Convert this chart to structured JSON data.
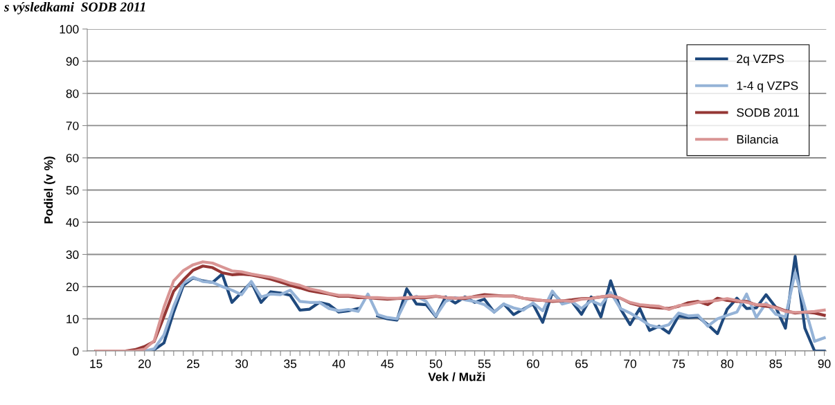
{
  "chart_data": {
    "type": "line",
    "title": "s výsledkami  SODB 2011",
    "xlabel": "Vek / Muži",
    "ylabel": "Podiel (v %)",
    "x": [
      15,
      16,
      17,
      18,
      19,
      20,
      21,
      22,
      23,
      24,
      25,
      26,
      27,
      28,
      29,
      30,
      31,
      32,
      33,
      34,
      35,
      36,
      37,
      38,
      39,
      40,
      41,
      42,
      43,
      44,
      45,
      46,
      47,
      48,
      49,
      50,
      51,
      52,
      53,
      54,
      55,
      56,
      57,
      58,
      59,
      60,
      61,
      62,
      63,
      64,
      65,
      66,
      67,
      68,
      69,
      70,
      71,
      72,
      73,
      74,
      75,
      76,
      77,
      78,
      79,
      80,
      81,
      82,
      83,
      84,
      85,
      86,
      87,
      88,
      89,
      90
    ],
    "series": [
      {
        "name": "2q VZPS",
        "color": "#1f497d",
        "values": [
          0,
          0,
          0,
          0,
          0,
          0,
          0.4,
          2.5,
          12.1,
          20.4,
          22.7,
          21.8,
          21.3,
          23.9,
          15.1,
          18.2,
          21.4,
          15.1,
          18.4,
          18,
          17.3,
          12.7,
          13,
          15.1,
          14.4,
          12.1,
          12.5,
          13.2,
          null,
          10.9,
          10,
          9.6,
          19.3,
          14.6,
          14.4,
          10.7,
          16.8,
          14.9,
          16.8,
          15.1,
          16.1,
          12.1,
          14.6,
          11.3,
          13,
          14.6,
          8.9,
          18.2,
          15,
          15.4,
          11.4,
          16.8,
          10.6,
          21.8,
          13.2,
          8.2,
          13.2,
          6.4,
          7.7,
          5.6,
          10.9,
          10.4,
          10.6,
          8.2,
          5.4,
          13,
          16.4,
          13.2,
          13.4,
          17.5,
          13.6,
          7.1,
          29.4,
          7.1,
          0,
          0
        ]
      },
      {
        "name": "1-4 q VZPS",
        "color": "#95b3d7",
        "values": [
          0,
          0,
          0,
          0,
          0,
          0,
          0.7,
          5,
          13.9,
          21.1,
          22.9,
          21.6,
          21.3,
          20,
          18.9,
          17.5,
          21.6,
          16.8,
          17.7,
          17.5,
          18.9,
          15.4,
          15.1,
          15.1,
          13.2,
          12.5,
          12.9,
          12.3,
          17.7,
          11.3,
          10.4,
          10,
          16.1,
          17,
          15.4,
          10.9,
          15.4,
          16.6,
          15.9,
          15.4,
          14.4,
          12.1,
          14.6,
          13.4,
          12.7,
          14.9,
          12.5,
          18.6,
          14.6,
          15.4,
          13.2,
          15.6,
          14.3,
          18.2,
          13.2,
          11.8,
          10,
          8,
          7.3,
          8.2,
          11.8,
          10.9,
          11.1,
          7.7,
          10,
          11.1,
          12.1,
          17.7,
          10.4,
          14.9,
          11.4,
          10.6,
          24.4,
          13.6,
          3,
          4.1
        ]
      },
      {
        "name": "SODB 2011",
        "color": "#953735",
        "values": [
          0,
          0,
          0,
          0,
          0.4,
          1.4,
          3,
          10.7,
          18.6,
          22.1,
          25.1,
          26.4,
          25.9,
          24.3,
          23.7,
          23.9,
          23.6,
          23,
          22.3,
          21.4,
          20.4,
          19.6,
          18.7,
          18.2,
          17.7,
          17,
          17,
          16.6,
          16.6,
          16.3,
          16.1,
          16.3,
          16.4,
          16.6,
          16.6,
          17,
          16.6,
          16.4,
          16.3,
          17,
          17.5,
          17.3,
          17.1,
          17.1,
          16.4,
          15.9,
          15.7,
          15.4,
          15.6,
          15.9,
          16.3,
          16.4,
          16.8,
          17.1,
          16.4,
          14.9,
          14.1,
          13.7,
          13.4,
          13.2,
          13.9,
          15,
          15.4,
          14.4,
          16.4,
          15.7,
          15.4,
          15.4,
          14.3,
          13.9,
          13.6,
          12.5,
          11.8,
          12.1,
          11.8,
          11.1
        ]
      },
      {
        "name": "Bilancia",
        "color": "#d99594",
        "values": [
          0,
          0,
          0,
          0,
          0,
          0.6,
          3.2,
          13.6,
          21.8,
          25,
          26.8,
          27.7,
          27.3,
          26.1,
          24.9,
          24.6,
          23.9,
          23.4,
          22.9,
          22.1,
          21.1,
          20.4,
          19.3,
          18.7,
          17.9,
          17.3,
          17.3,
          17,
          16.6,
          16.6,
          16.4,
          16.4,
          16.6,
          16.8,
          16.8,
          17.1,
          16.6,
          16.4,
          16.6,
          16.8,
          17,
          17.1,
          17.1,
          17,
          16.4,
          16.1,
          15.7,
          15.6,
          15.7,
          15.4,
          16.1,
          16.3,
          16.8,
          17.3,
          16.4,
          15.1,
          14.4,
          14.1,
          13.9,
          12.9,
          14.1,
          14.4,
          15.1,
          15.4,
          15.7,
          16.3,
          15.7,
          15.1,
          14.4,
          14.4,
          13.4,
          12.3,
          12,
          12.1,
          12.3,
          12.7
        ]
      }
    ],
    "xlim": [
      14.1,
      90.2
    ],
    "xticks": [
      15,
      {
        "value": 16,
        "label": null
      },
      {
        "value": 17,
        "label": null
      },
      {
        "value": 18,
        "label": null
      },
      {
        "value": 19,
        "label": null
      },
      20,
      {
        "value": 21,
        "label": null
      },
      {
        "value": 22,
        "label": null
      },
      {
        "value": 23,
        "label": null
      },
      {
        "value": 24,
        "label": null
      },
      25,
      {
        "value": 26,
        "label": null
      },
      {
        "value": 27,
        "label": null
      },
      {
        "value": 28,
        "label": null
      },
      {
        "value": 29,
        "label": null
      },
      30,
      {
        "value": 31,
        "label": null
      },
      {
        "value": 32,
        "label": null
      },
      {
        "value": 33,
        "label": null
      },
      {
        "value": 34,
        "label": null
      },
      35,
      {
        "value": 36,
        "label": null
      },
      {
        "value": 37,
        "label": null
      },
      {
        "value": 38,
        "label": null
      },
      {
        "value": 39,
        "label": null
      },
      40,
      {
        "value": 41,
        "label": null
      },
      {
        "value": 42,
        "label": null
      },
      {
        "value": 43,
        "label": null
      },
      {
        "value": 44,
        "label": null
      },
      45,
      {
        "value": 46,
        "label": null
      },
      {
        "value": 47,
        "label": null
      },
      {
        "value": 48,
        "label": null
      },
      {
        "value": 49,
        "label": null
      },
      50,
      {
        "value": 51,
        "label": null
      },
      {
        "value": 52,
        "label": null
      },
      {
        "value": 53,
        "label": null
      },
      {
        "value": 54,
        "label": null
      },
      55,
      {
        "value": 56,
        "label": null
      },
      {
        "value": 57,
        "label": null
      },
      {
        "value": 58,
        "label": null
      },
      {
        "value": 59,
        "label": null
      },
      60,
      {
        "value": 61,
        "label": null
      },
      {
        "value": 62,
        "label": null
      },
      {
        "value": 63,
        "label": null
      },
      {
        "value": 64,
        "label": null
      },
      65,
      {
        "value": 66,
        "label": null
      },
      {
        "value": 67,
        "label": null
      },
      {
        "value": 68,
        "label": null
      },
      {
        "value": 69,
        "label": null
      },
      70,
      {
        "value": 71,
        "label": null
      },
      {
        "value": 72,
        "label": null
      },
      {
        "value": 73,
        "label": null
      },
      {
        "value": 74,
        "label": null
      },
      75,
      {
        "value": 76,
        "label": null
      },
      {
        "value": 77,
        "label": null
      },
      {
        "value": 78,
        "label": null
      },
      {
        "value": 79,
        "label": null
      },
      80,
      {
        "value": 81,
        "label": null
      },
      {
        "value": 82,
        "label": null
      },
      {
        "value": 83,
        "label": null
      },
      {
        "value": 84,
        "label": null
      },
      85,
      {
        "value": 86,
        "label": null
      },
      {
        "value": 87,
        "label": null
      },
      {
        "value": 88,
        "label": null
      },
      {
        "value": 89,
        "label": null
      },
      90
    ],
    "ylim": [
      0,
      100
    ],
    "yticks": [
      0,
      10,
      20,
      30,
      40,
      50,
      60,
      70,
      80,
      90,
      100
    ],
    "grid": "y",
    "legend": "top right",
    "marker": "none",
    "line_style": "solid"
  }
}
